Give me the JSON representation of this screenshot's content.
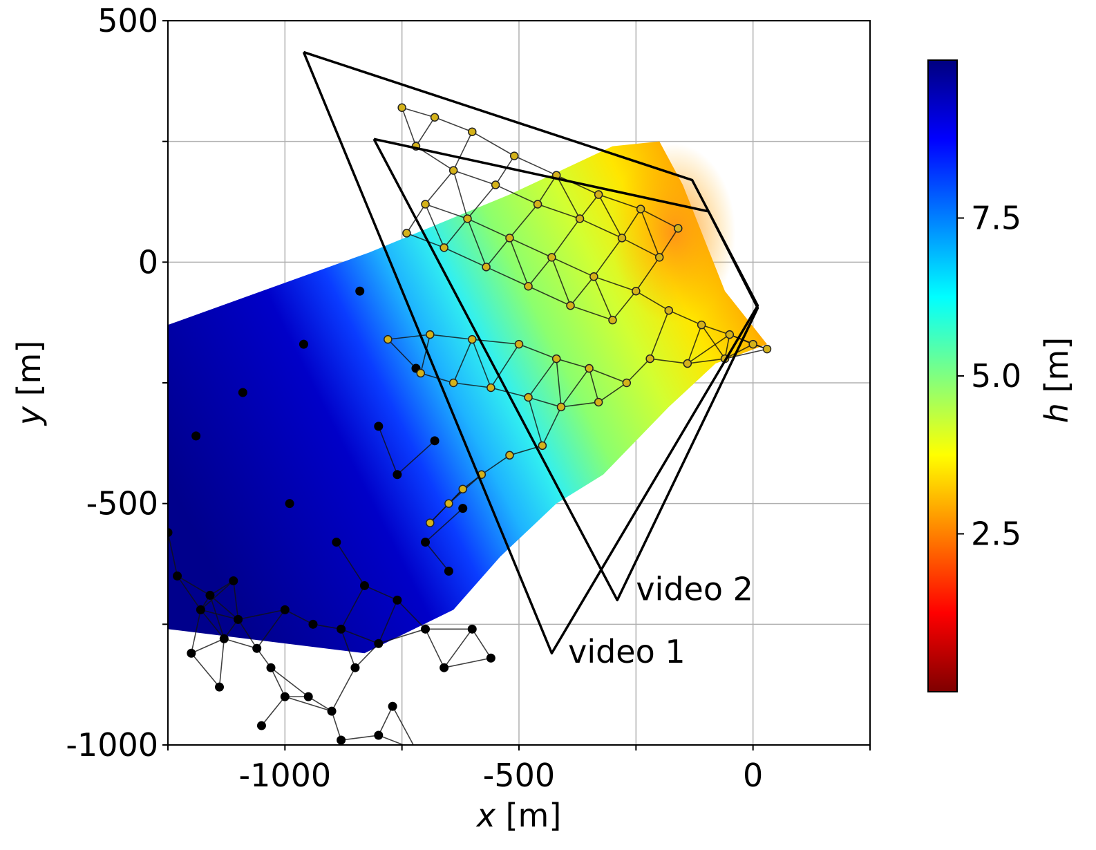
{
  "chart_data": {
    "type": "scatter",
    "xlabel_var": "x",
    "xlabel_unit": "[m]",
    "ylabel_var": "y",
    "ylabel_unit": "[m]",
    "xlim": [
      -1250,
      250
    ],
    "ylim": [
      -1000,
      500
    ],
    "x_ticks": [
      -1000,
      -500,
      0
    ],
    "x_tick_labels": [
      "-1000",
      "-500",
      "0"
    ],
    "y_ticks": [
      500,
      0,
      -500,
      -1000
    ],
    "y_tick_labels": [
      "500",
      "0",
      "-500",
      "-1000"
    ],
    "grid": true,
    "colorbar": {
      "label_var": "h",
      "label_unit": "[m]",
      "range": [
        0,
        10
      ],
      "ticks": [
        2.5,
        5.0,
        7.5
      ],
      "tick_labels": [
        "2.5",
        "5.0",
        "7.5"
      ],
      "colormap": "jet_reversed",
      "stops": [
        "#7f0000",
        "#ff0000",
        "#ff8000",
        "#ffff00",
        "#80ff80",
        "#00ffff",
        "#0080ff",
        "#0000ff",
        "#00007f"
      ]
    },
    "field_outline": [
      [
        -1250,
        -130
      ],
      [
        -820,
        20
      ],
      [
        -520,
        140
      ],
      [
        -300,
        240
      ],
      [
        -200,
        250
      ],
      [
        -150,
        160
      ],
      [
        -60,
        -60
      ],
      [
        30,
        -170
      ],
      [
        -80,
        -210
      ],
      [
        -180,
        -300
      ],
      [
        -320,
        -440
      ],
      [
        -420,
        -500
      ],
      [
        -540,
        -610
      ],
      [
        -640,
        -720
      ],
      [
        -830,
        -810
      ],
      [
        -1250,
        -760
      ]
    ],
    "warm_spot": [
      -170,
      60
    ],
    "footprints": [
      {
        "name": "video 1",
        "vertices": [
          [
            -960,
            435
          ],
          [
            -130,
            170
          ],
          [
            10,
            -90
          ],
          [
            -430,
            -810
          ],
          [
            -960,
            435
          ]
        ]
      },
      {
        "name": "video 2",
        "vertices": [
          [
            -810,
            255
          ],
          [
            -95,
            105
          ],
          [
            10,
            -95
          ],
          [
            -290,
            -700
          ],
          [
            -810,
            255
          ]
        ]
      }
    ],
    "labels": [
      {
        "text": "video 1",
        "x": -395,
        "y": -830
      },
      {
        "text": "video 2",
        "x": -250,
        "y": -700
      }
    ],
    "deep_points": [
      [
        -840,
        -60
      ],
      [
        -960,
        -170
      ],
      [
        -1090,
        -270
      ],
      [
        -1190,
        -360
      ],
      [
        -720,
        -220
      ],
      [
        -800,
        -340
      ],
      [
        -990,
        -500
      ],
      [
        -1250,
        -560
      ],
      [
        -680,
        -370
      ],
      [
        -760,
        -440
      ],
      [
        -890,
        -580
      ],
      [
        -1110,
        -660
      ],
      [
        -1230,
        -650
      ],
      [
        -1160,
        -690
      ],
      [
        -1000,
        -720
      ],
      [
        -620,
        -510
      ],
      [
        -700,
        -580
      ],
      [
        -830,
        -670
      ],
      [
        -940,
        -750
      ],
      [
        -1060,
        -800
      ],
      [
        -1180,
        -720
      ],
      [
        -1130,
        -780
      ],
      [
        -650,
        -640
      ],
      [
        -760,
        -700
      ],
      [
        -880,
        -760
      ],
      [
        -1030,
        -840
      ],
      [
        -600,
        -760
      ],
      [
        -700,
        -760
      ],
      [
        -800,
        -790
      ],
      [
        -1000,
        -900
      ],
      [
        -850,
        -840
      ],
      [
        -950,
        -900
      ],
      [
        -560,
        -820
      ],
      [
        -660,
        -840
      ],
      [
        -900,
        -930
      ],
      [
        -880,
        -990
      ],
      [
        -770,
        -920
      ],
      [
        -800,
        -980
      ],
      [
        -720,
        -1010
      ],
      [
        -1050,
        -960
      ],
      [
        -1140,
        -880
      ],
      [
        -1200,
        -810
      ],
      [
        -1100,
        -740
      ]
    ],
    "shallow_points": [
      [
        -160,
        70
      ],
      [
        -240,
        110
      ],
      [
        -330,
        140
      ],
      [
        -420,
        180
      ],
      [
        -510,
        220
      ],
      [
        -600,
        270
      ],
      [
        -680,
        300
      ],
      [
        -750,
        320
      ],
      [
        -200,
        10
      ],
      [
        -280,
        50
      ],
      [
        -370,
        90
      ],
      [
        -460,
        120
      ],
      [
        -550,
        160
      ],
      [
        -640,
        190
      ],
      [
        -720,
        240
      ],
      [
        -250,
        -60
      ],
      [
        -340,
        -30
      ],
      [
        -430,
        10
      ],
      [
        -520,
        50
      ],
      [
        -610,
        90
      ],
      [
        -700,
        120
      ],
      [
        -300,
        -120
      ],
      [
        -390,
        -90
      ],
      [
        -480,
        -50
      ],
      [
        -570,
        -10
      ],
      [
        -660,
        30
      ],
      [
        -740,
        60
      ],
      [
        -180,
        -100
      ],
      [
        -110,
        -130
      ],
      [
        -50,
        -150
      ],
      [
        0,
        -170
      ],
      [
        30,
        -180
      ],
      [
        -60,
        -200
      ],
      [
        -140,
        -210
      ],
      [
        -220,
        -200
      ],
      [
        -350,
        -220
      ],
      [
        -420,
        -200
      ],
      [
        -500,
        -170
      ],
      [
        -600,
        -160
      ],
      [
        -690,
        -150
      ],
      [
        -780,
        -160
      ],
      [
        -270,
        -250
      ],
      [
        -330,
        -290
      ],
      [
        -410,
        -300
      ],
      [
        -480,
        -280
      ],
      [
        -560,
        -260
      ],
      [
        -640,
        -250
      ],
      [
        -710,
        -230
      ],
      [
        -450,
        -380
      ],
      [
        -520,
        -400
      ],
      [
        -580,
        -440
      ],
      [
        -620,
        -470
      ],
      [
        -650,
        -500
      ],
      [
        -690,
        -540
      ]
    ]
  }
}
